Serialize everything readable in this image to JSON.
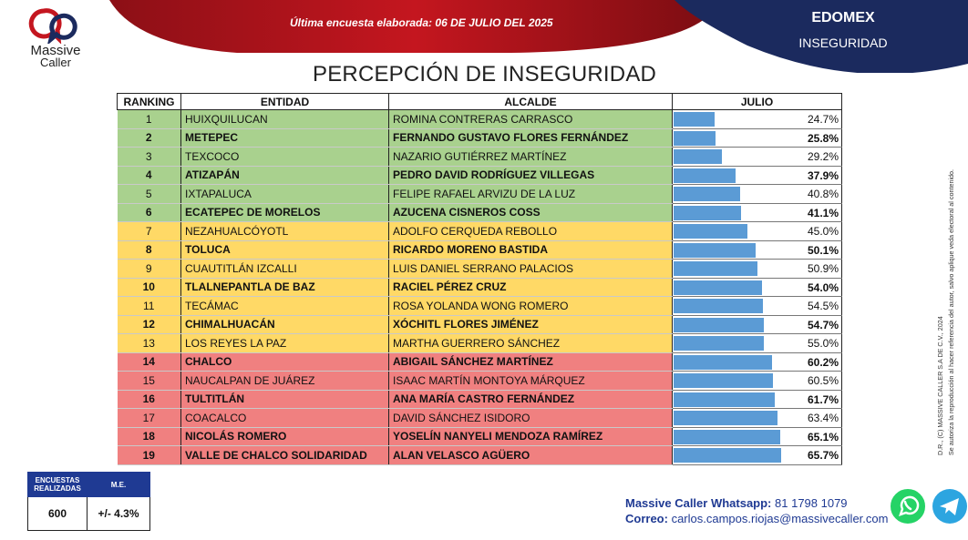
{
  "header": {
    "survey_label": "Última encuesta elaborada:",
    "survey_date": "06 DE JULIO DEL 2025",
    "state": "EDOMEX",
    "topic": "INSEGURIDAD",
    "logo_line1": "Massive",
    "logo_line2": "Caller"
  },
  "colors": {
    "red_band": "#b5121b",
    "navy": "#1b2a5e",
    "green": "#a9d18e",
    "yellow": "#ffd966",
    "red": "#f08080",
    "bar": "#5b9bd5"
  },
  "chart_data": {
    "type": "table",
    "title": "PERCEPCIÓN DE INSEGURIDAD",
    "columns": [
      "RANKING",
      "ENTIDAD",
      "ALCALDE",
      "JULIO"
    ],
    "rows": [
      {
        "rank": "1",
        "entidad": "HUIXQUILUCAN",
        "alcalde": "ROMINA CONTRERAS CARRASCO",
        "value": 24.7,
        "label": "24.7%",
        "band": "g",
        "bold": false
      },
      {
        "rank": "2",
        "entidad": "METEPEC",
        "alcalde": "FERNANDO GUSTAVO FLORES FERNÁNDEZ",
        "value": 25.8,
        "label": "25.8%",
        "band": "g",
        "bold": true
      },
      {
        "rank": "3",
        "entidad": "TEXCOCO",
        "alcalde": "NAZARIO GUTIÉRREZ MARTÍNEZ",
        "value": 29.2,
        "label": "29.2%",
        "band": "g",
        "bold": false
      },
      {
        "rank": "4",
        "entidad": "ATIZAPÁN",
        "alcalde": "PEDRO DAVID RODRÍGUEZ VILLEGAS",
        "value": 37.9,
        "label": "37.9%",
        "band": "g",
        "bold": true
      },
      {
        "rank": "5",
        "entidad": "IXTAPALUCA",
        "alcalde": "FELIPE RAFAEL ARVIZU DE LA LUZ",
        "value": 40.8,
        "label": "40.8%",
        "band": "g",
        "bold": false
      },
      {
        "rank": "6",
        "entidad": "ECATEPEC DE MORELOS",
        "alcalde": "AZUCENA CISNEROS COSS",
        "value": 41.1,
        "label": "41.1%",
        "band": "g",
        "bold": true
      },
      {
        "rank": "7",
        "entidad": "NEZAHUALCÓYOTL",
        "alcalde": "ADOLFO CERQUEDA REBOLLO",
        "value": 45.0,
        "label": "45.0%",
        "band": "y",
        "bold": false
      },
      {
        "rank": "8",
        "entidad": "TOLUCA",
        "alcalde": "RICARDO MORENO BASTIDA",
        "value": 50.1,
        "label": "50.1%",
        "band": "y",
        "bold": true
      },
      {
        "rank": "9",
        "entidad": "CUAUTITLÁN IZCALLI",
        "alcalde": "LUIS DANIEL SERRANO PALACIOS",
        "value": 50.9,
        "label": "50.9%",
        "band": "y",
        "bold": false
      },
      {
        "rank": "10",
        "entidad": "TLALNEPANTLA DE BAZ",
        "alcalde": "RACIEL PÉREZ CRUZ",
        "value": 54.0,
        "label": "54.0%",
        "band": "y",
        "bold": true
      },
      {
        "rank": "11",
        "entidad": "TECÁMAC",
        "alcalde": "ROSA YOLANDA WONG ROMERO",
        "value": 54.5,
        "label": "54.5%",
        "band": "y",
        "bold": false
      },
      {
        "rank": "12",
        "entidad": "CHIMALHUACÁN",
        "alcalde": "XÓCHITL FLORES JIMÉNEZ",
        "value": 54.7,
        "label": "54.7%",
        "band": "y",
        "bold": true
      },
      {
        "rank": "13",
        "entidad": "LOS REYES LA PAZ",
        "alcalde": "MARTHA GUERRERO SÁNCHEZ",
        "value": 55.0,
        "label": "55.0%",
        "band": "y",
        "bold": false
      },
      {
        "rank": "14",
        "entidad": "CHALCO",
        "alcalde": "ABIGAIL SÁNCHEZ MARTÍNEZ",
        "value": 60.2,
        "label": "60.2%",
        "band": "r",
        "bold": true
      },
      {
        "rank": "15",
        "entidad": "NAUCALPAN DE JUÁREZ",
        "alcalde": "ISAAC MARTÍN MONTOYA MÁRQUEZ",
        "value": 60.5,
        "label": "60.5%",
        "band": "r",
        "bold": false
      },
      {
        "rank": "16",
        "entidad": "TULTITLÁN",
        "alcalde": "ANA MARÍA CASTRO FERNÁNDEZ",
        "value": 61.7,
        "label": "61.7%",
        "band": "r",
        "bold": true
      },
      {
        "rank": "17",
        "entidad": "COACALCO",
        "alcalde": "DAVID SÁNCHEZ ISIDORO",
        "value": 63.4,
        "label": "63.4%",
        "band": "r",
        "bold": false
      },
      {
        "rank": "18",
        "entidad": "NICOLÁS ROMERO",
        "alcalde": "YOSELÍN NANYELI MENDOZA RAMÍREZ",
        "value": 65.1,
        "label": "65.1%",
        "band": "r",
        "bold": true
      },
      {
        "rank": "19",
        "entidad": "VALLE DE CHALCO SOLIDARIDAD",
        "alcalde": "ALAN VELASCO AGÜERO",
        "value": 65.7,
        "label": "65.7%",
        "band": "r",
        "bold": true
      }
    ]
  },
  "survey_box": {
    "col1_line1": "ENCUESTAS",
    "col1_line2": "REALIZADAS",
    "col2": "M.E.",
    "count": "600",
    "margin": "+/- 4.3%"
  },
  "contact": {
    "whatsapp_label": "Massive Caller Whatsapp:",
    "whatsapp_number": "81 1798 1079",
    "email_label": "Correo:",
    "email": "carlos.campos.riojas@massivecaller.com"
  },
  "legal": {
    "line1": "D.R., (C) MASSIVE CALLER S.A DE C.V., 2024",
    "line2": "Se autoriza la reproducción al hacer referencia del autor, salvo aplique veda electoral al contenido."
  },
  "icons": [
    "logo-icon",
    "whatsapp-icon",
    "telegram-icon"
  ]
}
